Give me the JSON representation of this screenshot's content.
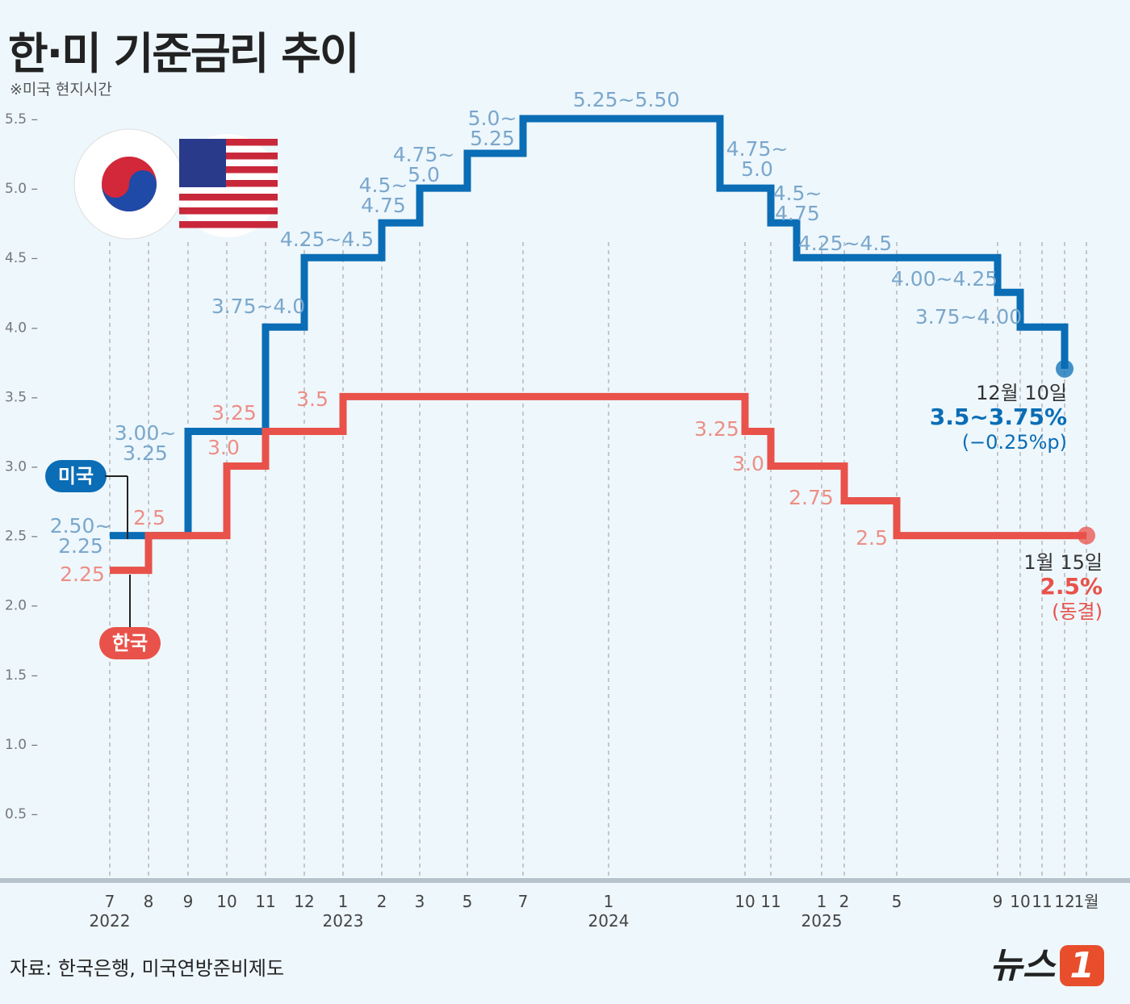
{
  "title": "한·미 기준금리 추이",
  "note": "※미국 현지시간",
  "source": "자료: 한국은행, 미국연방준비제도",
  "logo": "뉴스1",
  "colors": {
    "us": "#0a6db5",
    "kr": "#e8524a",
    "us_label": "#7aa7cc",
    "kr_label": "#ec8f86"
  },
  "chart_data": {
    "type": "line",
    "step": true,
    "ylim": [
      0,
      5.5
    ],
    "yticks": [
      "0.5",
      "1.0",
      "1.5",
      "2.0",
      "2.5",
      "3.0",
      "3.5",
      "4.0",
      "4.5",
      "5.0",
      "5.5"
    ],
    "xticks": [
      {
        "m": "2022-07",
        "label": "7",
        "year": "2022"
      },
      {
        "m": "2022-08",
        "label": "8"
      },
      {
        "m": "2022-09",
        "label": "9"
      },
      {
        "m": "2022-10",
        "label": "10"
      },
      {
        "m": "2022-11",
        "label": "11"
      },
      {
        "m": "2022-12",
        "label": "12"
      },
      {
        "m": "2023-01",
        "label": "1",
        "year": "2023"
      },
      {
        "m": "2023-02",
        "label": "2"
      },
      {
        "m": "2023-03",
        "label": "3"
      },
      {
        "m": "2023-05",
        "label": "5"
      },
      {
        "m": "2023-07",
        "label": "7"
      },
      {
        "m": "2024-01",
        "label": "1",
        "year": "2024"
      },
      {
        "m": "2024-10",
        "label": "10"
      },
      {
        "m": "2024-11",
        "label": "11"
      },
      {
        "m": "2025-01",
        "label": "1",
        "year": "2025"
      },
      {
        "m": "2025-02",
        "label": "2"
      },
      {
        "m": "2025-05",
        "label": "5"
      },
      {
        "m": "2025-09",
        "label": "9"
      },
      {
        "m": "2025-10",
        "label": "10"
      },
      {
        "m": "2025-11",
        "label": "11"
      },
      {
        "m": "2025-12",
        "label": "12"
      },
      {
        "m": "2026-01",
        "label": "1월"
      }
    ],
    "series": [
      {
        "name": "미국",
        "key": "us",
        "points": [
          {
            "x": "2022-07",
            "y": 2.5,
            "label": "2.50~\n2.25"
          },
          {
            "x": "2022-09",
            "y": 3.25,
            "label": "3.00~\n3.25"
          },
          {
            "x": "2022-11",
            "y": 4.0,
            "label": "3.75~4.0"
          },
          {
            "x": "2022-12",
            "y": 4.5,
            "label": "4.25~4.5"
          },
          {
            "x": "2023-02",
            "y": 4.75,
            "label": "4.5~\n4.75"
          },
          {
            "x": "2023-03",
            "y": 5.0,
            "label": "4.75~\n5.0"
          },
          {
            "x": "2023-05",
            "y": 5.25,
            "label": "5.0~\n5.25"
          },
          {
            "x": "2023-07",
            "y": 5.5,
            "label": "5.25~5.50"
          },
          {
            "x": "2024-09",
            "y": 5.0,
            "label": "4.75~\n5.0"
          },
          {
            "x": "2024-11",
            "y": 4.75,
            "label": "4.5~\n4.75"
          },
          {
            "x": "2024-12",
            "y": 4.5,
            "label": "4.25~4.5"
          },
          {
            "x": "2025-09",
            "y": 4.25,
            "label": "4.00~4.25"
          },
          {
            "x": "2025-10",
            "y": 4.0,
            "label": "3.75~4.00"
          },
          {
            "x": "2025-12",
            "y": 3.75,
            "label": ""
          }
        ],
        "end": {
          "date": "12월 10일",
          "value": "3.5~3.75%",
          "change": "(−0.25%p)"
        }
      },
      {
        "name": "한국",
        "key": "kr",
        "points": [
          {
            "x": "2022-07",
            "y": 2.25,
            "label": "2.25"
          },
          {
            "x": "2022-08",
            "y": 2.5,
            "label": "2.5"
          },
          {
            "x": "2022-10",
            "y": 3.0,
            "label": "3.0"
          },
          {
            "x": "2022-11",
            "y": 3.25,
            "label": "3.25"
          },
          {
            "x": "2023-01",
            "y": 3.5,
            "label": "3.5"
          },
          {
            "x": "2024-10",
            "y": 3.25,
            "label": "3.25"
          },
          {
            "x": "2024-11",
            "y": 3.0,
            "label": "3.0"
          },
          {
            "x": "2025-02",
            "y": 2.75,
            "label": "2.75"
          },
          {
            "x": "2025-05",
            "y": 2.5,
            "label": "2.5"
          },
          {
            "x": "2026-01",
            "y": 2.5,
            "label": ""
          }
        ],
        "end": {
          "date": "1월 15일",
          "value": "2.5%",
          "change": "(동결)"
        }
      }
    ]
  }
}
